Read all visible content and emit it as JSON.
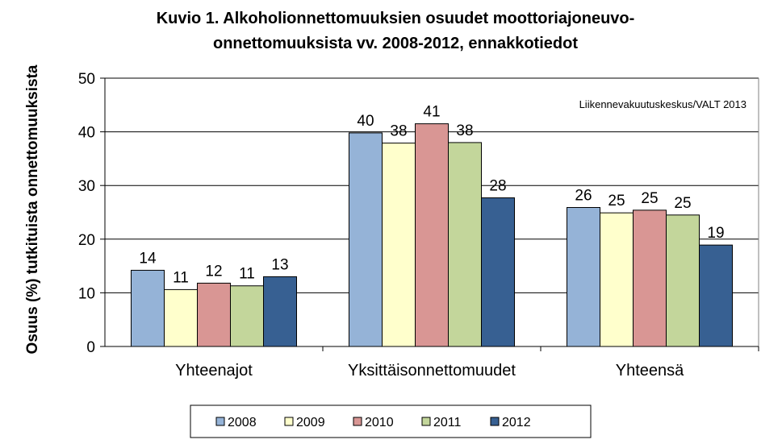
{
  "chart_data": {
    "type": "bar",
    "title_line1": "Kuvio 1. Alkoholionnettomuuksien  osuudet moottoriajoneuvo-",
    "title_line2": "onnettomuuksista  vv. 2008-2012, ennakkotiedot",
    "xlabel": "",
    "ylabel": "Osuus (%) tutkituista onnettomuuksista",
    "source_note": "Liikennevakuutuskeskus/VALT  2013",
    "ylim": [
      0,
      50
    ],
    "yticks": [
      "0",
      "10",
      "20",
      "30",
      "40",
      "50"
    ],
    "grid": true,
    "legend_position": "bottom",
    "categories": [
      "Yhteenajot",
      "Yksittäisonnettomuudet",
      "Yhteensä"
    ],
    "series": [
      {
        "name": "2008",
        "color": "#95b3d7",
        "values": [
          14.2,
          39.8,
          25.9
        ],
        "labels": [
          "14",
          "40",
          "26"
        ]
      },
      {
        "name": "2009",
        "color": "#ffffcc",
        "values": [
          10.6,
          37.9,
          24.9
        ],
        "labels": [
          "11",
          "38",
          "25"
        ]
      },
      {
        "name": "2010",
        "color": "#d99694",
        "values": [
          11.8,
          41.5,
          25.4
        ],
        "labels": [
          "12",
          "41",
          "25"
        ]
      },
      {
        "name": "2011",
        "color": "#c3d69b",
        "values": [
          11.3,
          38.0,
          24.5
        ],
        "labels": [
          "11",
          "38",
          "25"
        ]
      },
      {
        "name": "2012",
        "color": "#376092",
        "values": [
          13.0,
          27.7,
          18.9
        ],
        "labels": [
          "13",
          "28",
          "19"
        ]
      }
    ]
  }
}
